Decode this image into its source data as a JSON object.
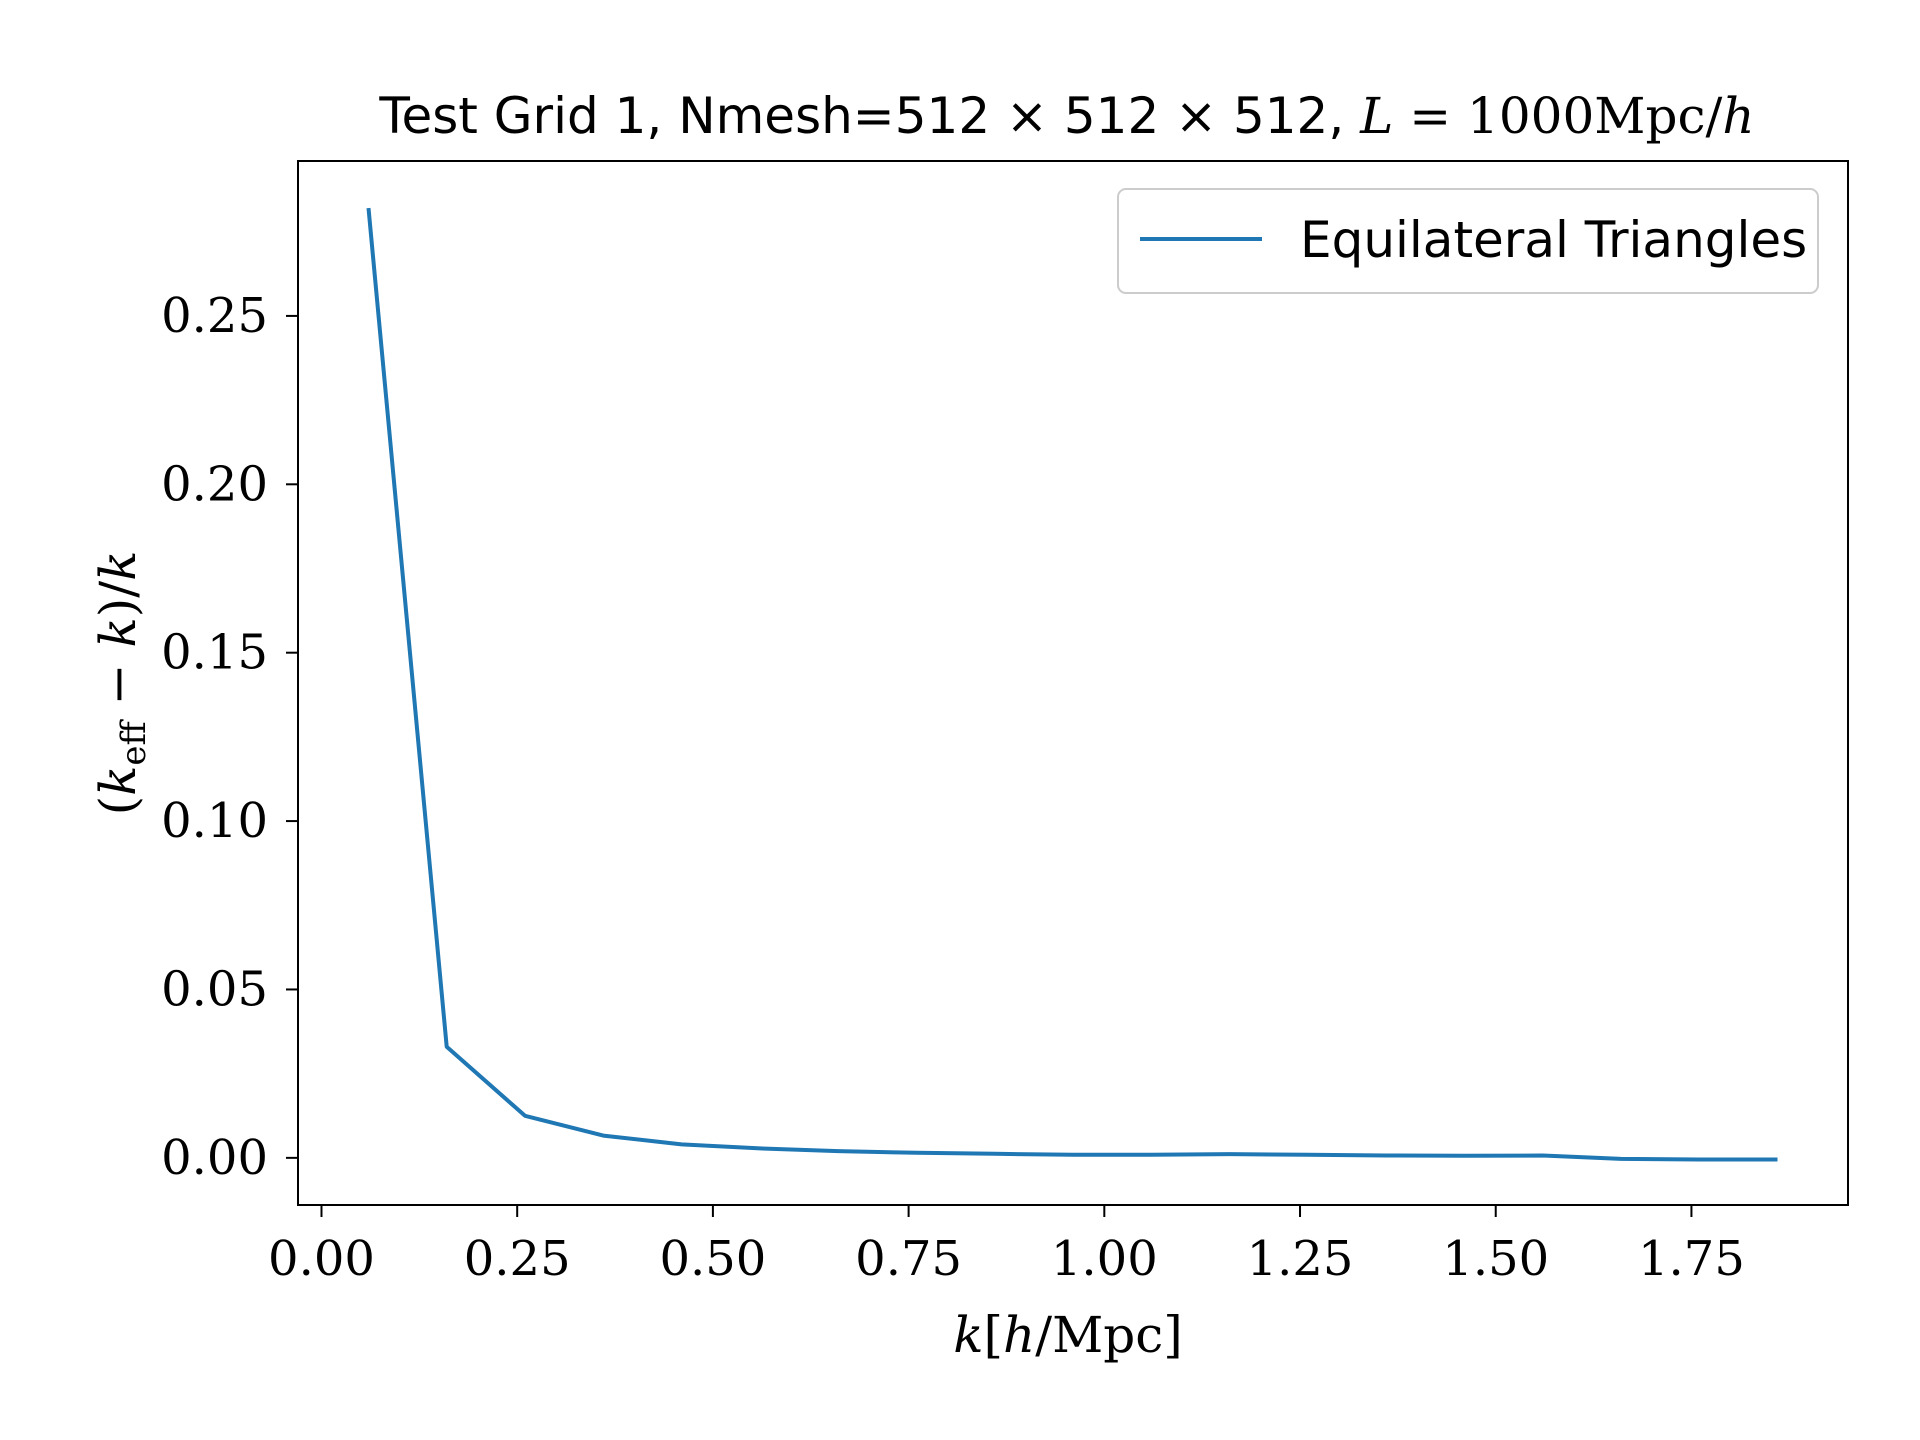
{
  "chart_data": {
    "type": "line",
    "title": "Test Grid 1, Nmesh=512 × 512 × 512, L = 1000Mpc/h",
    "xlabel": "k[h/Mpc]",
    "ylabel": "(k_eff − k)/k",
    "xlim": [
      -0.03,
      1.95
    ],
    "ylim": [
      -0.014,
      0.296
    ],
    "xticks": [
      0.0,
      0.25,
      0.5,
      0.75,
      1.0,
      1.25,
      1.5,
      1.75
    ],
    "xtick_labels": [
      "0.00",
      "0.25",
      "0.50",
      "0.75",
      "1.00",
      "1.25",
      "1.50",
      "1.75"
    ],
    "yticks": [
      0.0,
      0.05,
      0.1,
      0.15,
      0.2,
      0.25
    ],
    "ytick_labels": [
      "0.00",
      "0.05",
      "0.10",
      "0.15",
      "0.20",
      "0.25"
    ],
    "grid": false,
    "legend_position": "top-right",
    "series": [
      {
        "name": "Equilateral Triangles",
        "color": "#1f77b4",
        "x": [
          0.06,
          0.16,
          0.26,
          0.36,
          0.46,
          0.56,
          0.66,
          0.76,
          0.86,
          0.96,
          1.06,
          1.16,
          1.26,
          1.36,
          1.46,
          1.56,
          1.66,
          1.76,
          1.86
        ],
        "y": [
          0.282,
          0.033,
          0.0125,
          0.0066,
          0.004,
          0.0028,
          0.002,
          0.0015,
          0.0012,
          0.0009,
          0.0009,
          0.0011,
          0.0009,
          0.0007,
          0.0006,
          0.0007,
          -0.0003,
          -0.0005,
          -0.0005
        ]
      }
    ]
  }
}
